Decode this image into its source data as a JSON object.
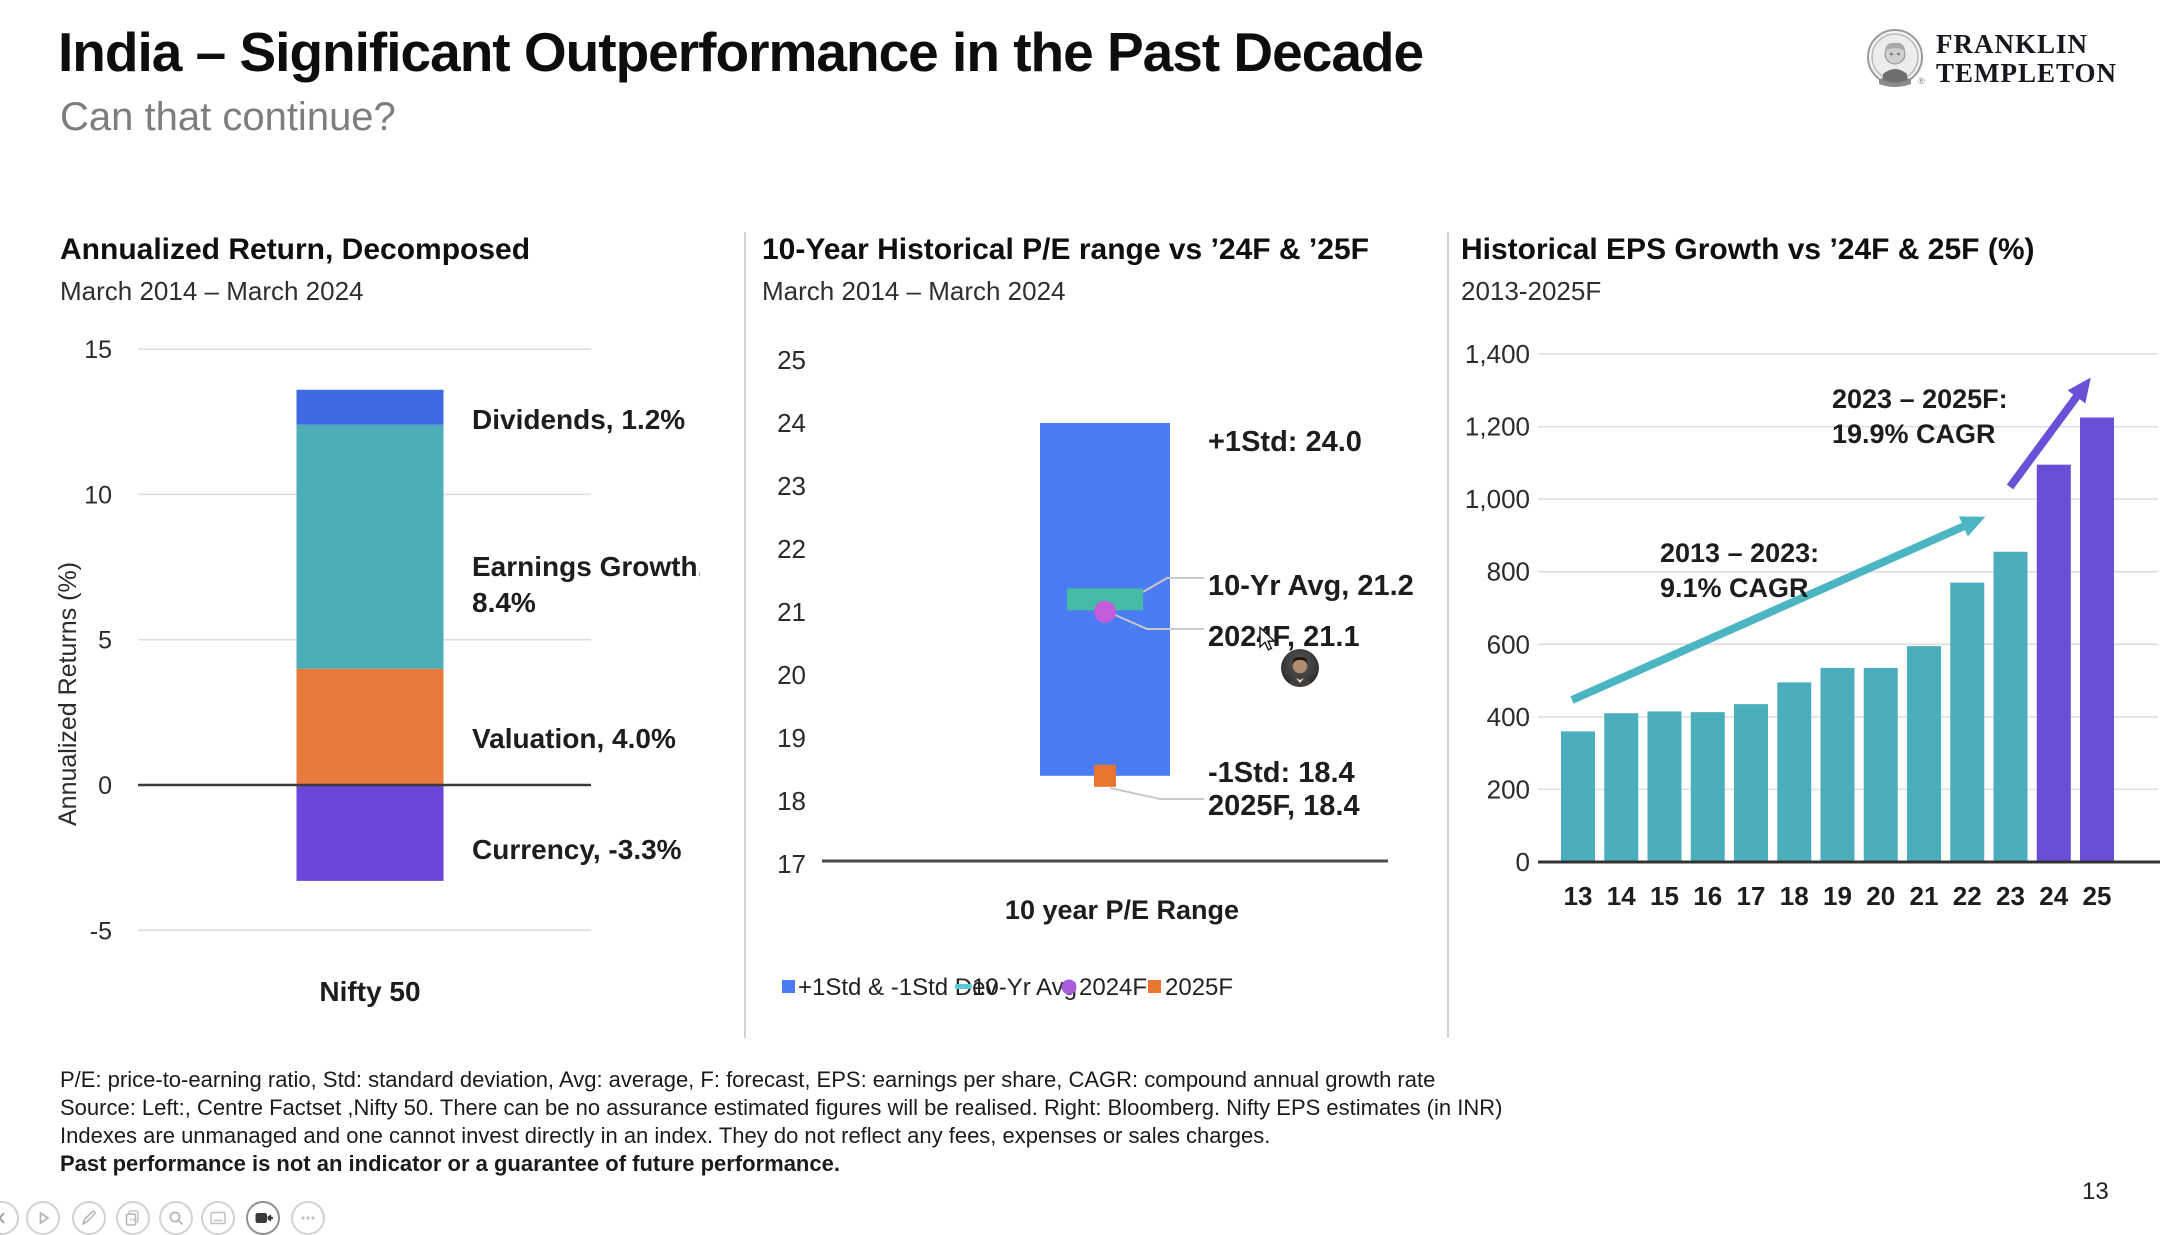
{
  "header": {
    "title": "India – Significant Outperformance in the Past Decade",
    "subtitle": "Can that continue?",
    "logo": {
      "line1": "FRANKLIN",
      "line2": "TEMPLETON",
      "registered": "®"
    }
  },
  "footer": {
    "lines": [
      "P/E: price-to-earning ratio, Std: standard deviation, Avg: average, F: forecast, EPS: earnings per share, CAGR: compound annual growth rate",
      "Source: Left:, Centre Factset ,Nifty 50. There can be no assurance estimated figures will be realised. Right: Bloomberg. Nifty EPS estimates (in INR)",
      "Indexes are unmanaged and one cannot invest directly in an index. They do not reflect any fees, expenses or sales charges.",
      "Past performance is not an indicator or a guarantee of future performance."
    ],
    "page_number": "13"
  },
  "toolbar": {
    "items": [
      {
        "icon": "back"
      },
      {
        "icon": "play"
      },
      {
        "icon": "pencil"
      },
      {
        "icon": "copy"
      },
      {
        "icon": "search"
      },
      {
        "icon": "panel"
      },
      {
        "icon": "camera",
        "active": true
      },
      {
        "icon": "more"
      }
    ]
  },
  "chart_data": [
    {
      "type": "bar",
      "stacked": true,
      "title": "Annualized Return, Decomposed",
      "subtitle": "March 2014 – March 2024",
      "categories": [
        "Nifty 50"
      ],
      "series": [
        {
          "name": "Currency",
          "value": -3.3,
          "color": "#6B46D8",
          "label_lines": [
            "Currency, -3.3%"
          ]
        },
        {
          "name": "Valuation",
          "value": 4.0,
          "color": "#E87A3E",
          "label_lines": [
            "Valuation, 4.0%"
          ]
        },
        {
          "name": "Earnings Growth",
          "value": 8.4,
          "color": "#4BAEB8",
          "label_lines": [
            "Earnings Growth,",
            "8.4%"
          ]
        },
        {
          "name": "Dividends",
          "value": 1.2,
          "color": "#3F69E1",
          "label_lines": [
            "Dividends, 1.2%"
          ]
        }
      ],
      "ylabel": "Annualized Returns (%)",
      "yticks": [
        15,
        10,
        5,
        0,
        -5
      ],
      "ylim": [
        -5,
        15
      ],
      "grid": true,
      "legend_position": "none"
    },
    {
      "type": "bar",
      "subtype": "floating-range",
      "title": "10-Year Historical P/E range vs ’24F & ’25F",
      "subtitle": "March 2014 – March 2024",
      "xlabel": "10 year P/E Range",
      "yticks": [
        25,
        24,
        23,
        22,
        21,
        20,
        19,
        18,
        17
      ],
      "ylim": [
        17,
        25
      ],
      "range": {
        "name": "+1Std & -1Std Dev",
        "low": 18.4,
        "high": 24.0,
        "color": "#4C7CF3"
      },
      "markers": [
        {
          "name": "10-Yr Avg",
          "value": 21.2,
          "shape": "dash",
          "color": "#45BBA5",
          "label": "10-Yr Avg, 21.2"
        },
        {
          "name": "2024F",
          "value": 21.1,
          "shape": "circle",
          "color": "#C45BD9",
          "label": "2024F, 21.1"
        },
        {
          "name": "2025F",
          "value": 18.4,
          "shape": "square",
          "color": "#E8742E",
          "label": "2025F, 18.4"
        }
      ],
      "end_labels": [
        {
          "text": "+1Std: 24.0",
          "value": 24.0
        },
        {
          "text": "-1Std: 18.4",
          "value": 18.4
        }
      ],
      "legend": [
        {
          "label": "+1Std & -1Std Dev",
          "shape": "square",
          "color": "#4C7CF3"
        },
        {
          "label": "10-Yr Avg",
          "shape": "dash",
          "color": "#5BC8D6"
        },
        {
          "label": "2024F",
          "shape": "circle",
          "color": "#A95BD9"
        },
        {
          "label": "2025F",
          "shape": "square",
          "color": "#E8742E"
        }
      ],
      "legend_position": "bottom",
      "grid": false
    },
    {
      "type": "bar",
      "title": "Historical EPS Growth vs ’24F & 25F (%)",
      "subtitle": "2013-2025F",
      "categories": [
        "13",
        "14",
        "15",
        "16",
        "17",
        "18",
        "19",
        "20",
        "21",
        "22",
        "23",
        "24",
        "25"
      ],
      "values": [
        360,
        410,
        415,
        413,
        435,
        495,
        535,
        535,
        595,
        770,
        855,
        1095,
        1225
      ],
      "bar_colors": [
        "#4BAEBC",
        "#4BAEBC",
        "#4BAEBC",
        "#4BAEBC",
        "#4BAEBC",
        "#4BAEBC",
        "#4BAEBC",
        "#4BAEBC",
        "#4BAEBC",
        "#4BAEBC",
        "#4BAEBC",
        "#6A4ED8",
        "#6A4ED8"
      ],
      "history_color": "#4BAEBC",
      "forecast_color": "#6A4ED8",
      "ytick_labels": [
        "1,400",
        "1,200",
        "1,000",
        "800",
        "600",
        "400",
        "200",
        "0"
      ],
      "ytick_values": [
        1400,
        1200,
        1000,
        800,
        600,
        400,
        200,
        0
      ],
      "ylim": [
        0,
        1400
      ],
      "grid": true,
      "annotations": [
        {
          "lines": [
            "2013 – 2023:",
            "9.1% CAGR"
          ],
          "arrow_color": "#4BB5C3"
        },
        {
          "lines": [
            "2023 – 2025F:",
            "19.9% CAGR"
          ],
          "arrow_color": "#6950D6"
        }
      ]
    }
  ]
}
